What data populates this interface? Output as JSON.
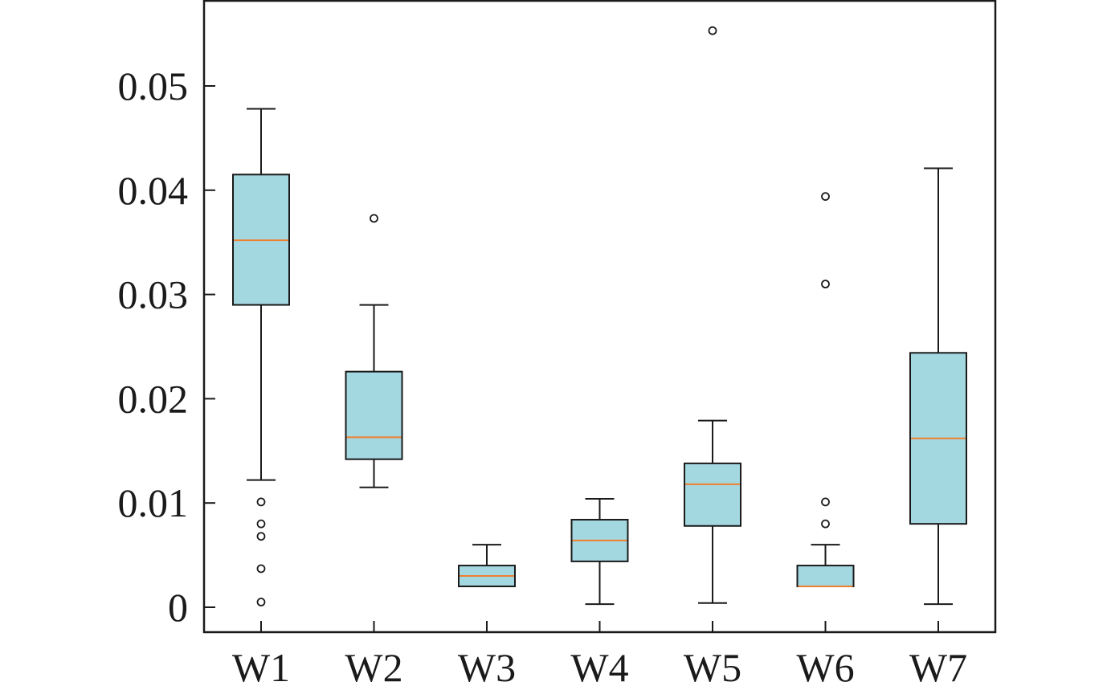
{
  "chart_data": {
    "type": "box",
    "title": "",
    "xlabel": "",
    "ylabel": "",
    "ylim": [
      -0.0025,
      0.058
    ],
    "yticks": [
      {
        "value": 0,
        "label": "0"
      },
      {
        "value": 0.01,
        "label": "0.01"
      },
      {
        "value": 0.02,
        "label": "0.02"
      },
      {
        "value": 0.03,
        "label": "0.03"
      },
      {
        "value": 0.04,
        "label": "0.04"
      },
      {
        "value": 0.05,
        "label": "0.05"
      }
    ],
    "categories": [
      "W1",
      "W2",
      "W3",
      "W4",
      "W5",
      "W6",
      "W7"
    ],
    "boxes": [
      {
        "name": "W1",
        "whisker_low": 0.0122,
        "q1": 0.029,
        "median": 0.0352,
        "q3": 0.0415,
        "whisker_high": 0.0478,
        "outliers": [
          0.0101,
          0.008,
          0.0068,
          0.0037,
          0.0005
        ]
      },
      {
        "name": "W2",
        "whisker_low": 0.0115,
        "q1": 0.0142,
        "median": 0.0163,
        "q3": 0.0226,
        "whisker_high": 0.029,
        "outliers": [
          0.0373
        ]
      },
      {
        "name": "W3",
        "whisker_low": 0.002,
        "q1": 0.002,
        "median": 0.003,
        "q3": 0.004,
        "whisker_high": 0.006,
        "outliers": []
      },
      {
        "name": "W4",
        "whisker_low": 0.0003,
        "q1": 0.0044,
        "median": 0.0064,
        "q3": 0.0084,
        "whisker_high": 0.0104,
        "outliers": []
      },
      {
        "name": "W5",
        "whisker_low": 0.0004,
        "q1": 0.0078,
        "median": 0.0118,
        "q3": 0.0138,
        "whisker_high": 0.0179,
        "outliers": [
          0.0553
        ]
      },
      {
        "name": "W6",
        "whisker_low": 0.002,
        "q1": 0.002,
        "median": 0.002,
        "q3": 0.004,
        "whisker_high": 0.006,
        "outliers": [
          0.0394,
          0.031,
          0.0101,
          0.008
        ]
      },
      {
        "name": "W7",
        "whisker_low": 0.0003,
        "q1": 0.008,
        "median": 0.0162,
        "q3": 0.0244,
        "whisker_high": 0.0421,
        "outliers": []
      }
    ],
    "grid": false,
    "legend": "none",
    "colors": {
      "box_fill": "#a3d8e1",
      "box_stroke": "#1a1a1a",
      "median": "#f07f2e",
      "outlier_stroke": "#1a1a1a",
      "axis": "#1a1a1a"
    }
  }
}
